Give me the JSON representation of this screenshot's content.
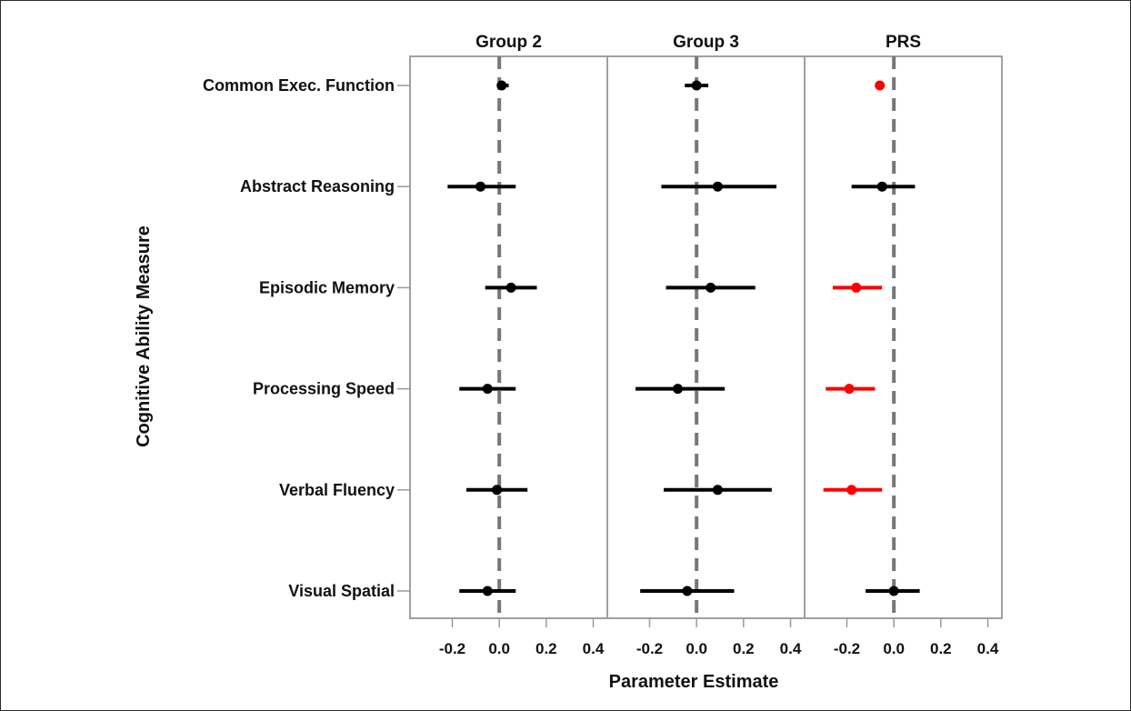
{
  "chart_data": {
    "type": "scatter",
    "subtype": "forest-plot",
    "xlabel": "Parameter Estimate",
    "ylabel": "Cognitive Ability Measure",
    "xlim": [
      -0.38,
      0.46
    ],
    "x_ticks": [
      "-0.2",
      "0.0",
      "0.2",
      "0.4"
    ],
    "x_tick_values": [
      -0.2,
      0.0,
      0.2,
      0.4
    ],
    "reference_line": 0,
    "grid": false,
    "categories": [
      "Common Exec. Function",
      "Abstract Reasoning",
      "Episodic Memory",
      "Processing Speed",
      "Verbal Fluency",
      "Visual Spatial"
    ],
    "colors": {
      "normal": "#000000",
      "highlight": "#ff0000",
      "refline": "#777777",
      "frame": "#a0a0a0"
    },
    "panels": [
      {
        "name": "Group 2",
        "estimates": [
          0.01,
          -0.08,
          0.05,
          -0.05,
          -0.01,
          -0.05
        ],
        "lower": [
          -0.01,
          -0.22,
          -0.06,
          -0.17,
          -0.14,
          -0.17
        ],
        "upper": [
          0.04,
          0.07,
          0.16,
          0.07,
          0.12,
          0.07
        ],
        "highlight": [
          false,
          false,
          false,
          false,
          false,
          false
        ]
      },
      {
        "name": "Group 3",
        "estimates": [
          0.0,
          0.09,
          0.06,
          -0.08,
          0.09,
          -0.04
        ],
        "lower": [
          -0.05,
          -0.15,
          -0.13,
          -0.26,
          -0.14,
          -0.24
        ],
        "upper": [
          0.05,
          0.34,
          0.25,
          0.12,
          0.32,
          0.16
        ],
        "highlight": [
          false,
          false,
          false,
          false,
          false,
          false
        ]
      },
      {
        "name": "PRS",
        "estimates": [
          -0.06,
          -0.05,
          -0.16,
          -0.19,
          -0.18,
          0.0
        ],
        "lower": [
          -0.08,
          -0.18,
          -0.26,
          -0.29,
          -0.3,
          -0.12
        ],
        "upper": [
          -0.04,
          0.09,
          -0.05,
          -0.08,
          -0.05,
          0.11
        ],
        "highlight": [
          true,
          false,
          true,
          true,
          true,
          false
        ]
      }
    ]
  }
}
